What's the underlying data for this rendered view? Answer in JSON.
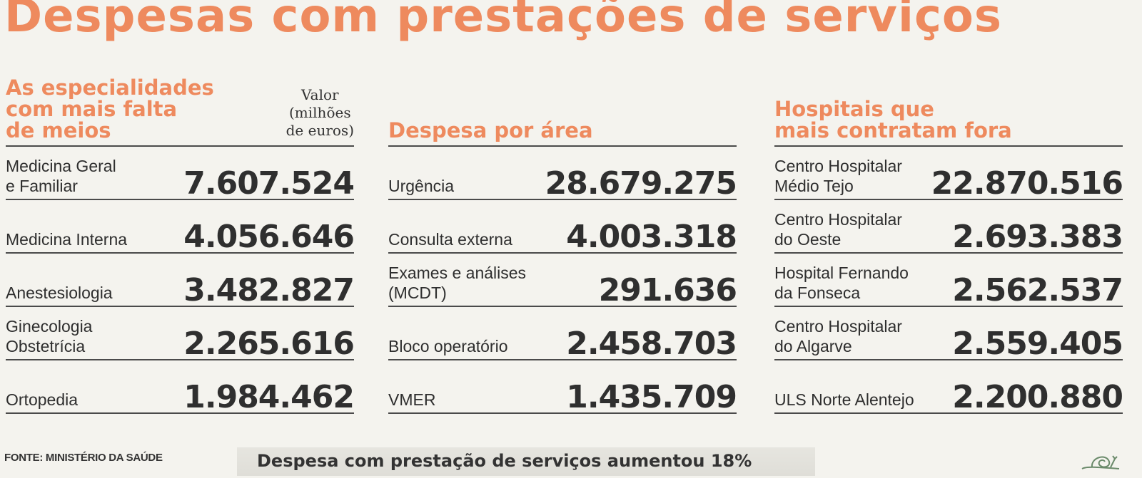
{
  "title": "Despesas com prestações de serviços",
  "specialties": {
    "heading_lines": [
      "As especialidades",
      "com mais falta",
      "de meios"
    ],
    "value_unit_lines": [
      "Valor",
      "(milhões",
      "de euros)"
    ],
    "rows": [
      {
        "label_lines": [
          "Medicina Geral",
          "e Familiar"
        ],
        "value": "7.607.524"
      },
      {
        "label_lines": [
          "Medicina Interna"
        ],
        "value": "4.056.646"
      },
      {
        "label_lines": [
          "Anestesiologia"
        ],
        "value": "3.482.827"
      },
      {
        "label_lines": [
          "Ginecologia",
          "Obstetrícia"
        ],
        "value": "2.265.616"
      },
      {
        "label_lines": [
          "Ortopedia"
        ],
        "value": "1.984.462"
      }
    ]
  },
  "areas": {
    "heading_lines": [
      "Despesa por área"
    ],
    "rows": [
      {
        "label_lines": [
          "Urgência"
        ],
        "value": "28.679.275"
      },
      {
        "label_lines": [
          "Consulta externa"
        ],
        "value": "4.003.318"
      },
      {
        "label_lines": [
          "Exames e análises",
          "(MCDT)"
        ],
        "value": "291.636"
      },
      {
        "label_lines": [
          "Bloco operatório"
        ],
        "value": "2.458.703"
      },
      {
        "label_lines": [
          "VMER"
        ],
        "value": "1.435.709"
      }
    ]
  },
  "hospitals": {
    "heading_lines": [
      "Hospitais que",
      "mais contratam fora"
    ],
    "rows": [
      {
        "label_lines": [
          "Centro Hospitalar",
          "Médio Tejo"
        ],
        "value": "22.870.516"
      },
      {
        "label_lines": [
          "Centro Hospitalar",
          "do Oeste"
        ],
        "value": "2.693.383"
      },
      {
        "label_lines": [
          "Hospital Fernando",
          "da Fonseca"
        ],
        "value": "2.562.537"
      },
      {
        "label_lines": [
          "Centro Hospitalar",
          "do Algarve"
        ],
        "value": "2.559.405"
      },
      {
        "label_lines": [
          "ULS Norte Alentejo"
        ],
        "value": "2.200.880"
      }
    ]
  },
  "source": "FONTE: MINISTÉRIO DA SAÚDE",
  "banner": "Despesa com prestação de serviços aumentou 18%",
  "mascot_icon": "snail-icon",
  "colors": {
    "accent": "#ee8a5e",
    "text": "#2f2f2f",
    "paper": "#f4f3ee"
  }
}
